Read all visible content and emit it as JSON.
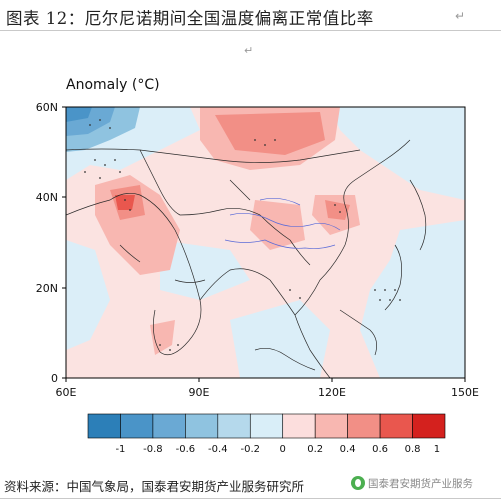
{
  "header": {
    "title": "图表 12：厄尔尼诺期间全国温度偏离正常值比率",
    "title_mark": "↵",
    "arrow_mark": "↵"
  },
  "map": {
    "anomaly_label": "Anomaly (°C)",
    "lat_labels": [
      "60N",
      "40N",
      "20N",
      "0"
    ],
    "lon_labels": [
      "60E",
      "90E",
      "120E",
      "150E"
    ],
    "lat_values": [
      60,
      40,
      20,
      0
    ],
    "lon_values": [
      60,
      90,
      120,
      150
    ]
  },
  "colorbar": {
    "tick_labels": [
      "-1",
      "-0.8",
      "-0.6",
      "-0.4",
      "-0.2",
      "0",
      "0.2",
      "0.4",
      "0.6",
      "0.8",
      "1"
    ],
    "colors": [
      "#2c7fb8",
      "#4a94c8",
      "#6aa9d4",
      "#8fc3e0",
      "#b5d9ec",
      "#d9eef8",
      "#fcdedd",
      "#f8b7b1",
      "#f28f86",
      "#e9574e",
      "#d4211e"
    ]
  },
  "footer": {
    "source": "资料来源：中国气象局，国泰君安期货产业服务研究所",
    "watermark": "国泰君安期货产业服务"
  }
}
